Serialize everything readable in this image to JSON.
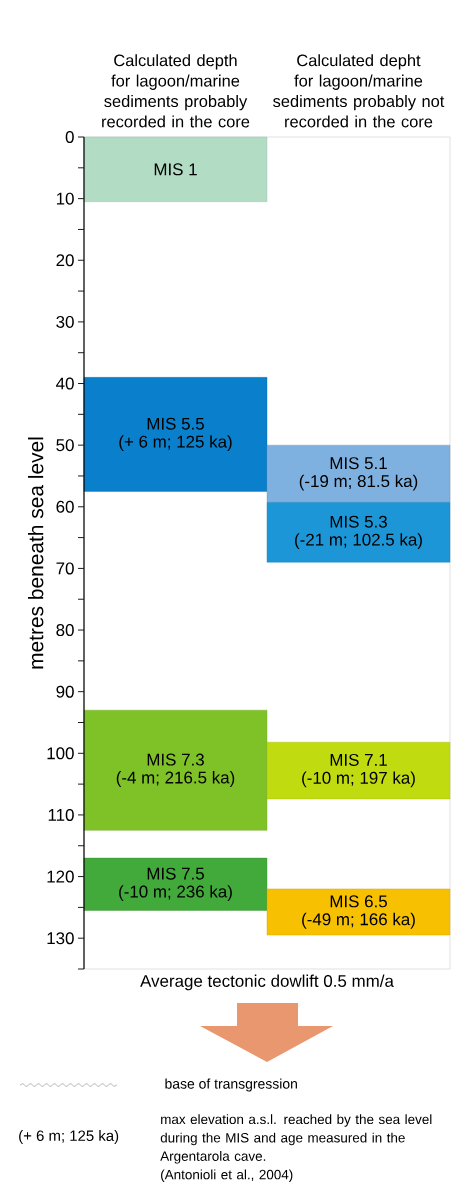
{
  "chart_data": {
    "type": "bar",
    "categories": [
      "Calculated depth for lagoon/marine sediments probably recorded in the core",
      "Calculated depht for lagoon/marine sediments probably not recorded in the core"
    ],
    "series": [
      {
        "name": "MIS 1",
        "color": "#b3dcc4",
        "base": [
          0,
          null
        ],
        "values": [
          10.5,
          null
        ]
      },
      {
        "name": "MIS 5.5",
        "color": "#0a7fcc",
        "base": [
          39,
          null
        ],
        "values": [
          18.5,
          null
        ],
        "value_labels": [
          "(+ 6 m; 125 ka)",
          null
        ]
      },
      {
        "name": "MIS 7.3",
        "color": "#7fc228",
        "base": [
          93,
          null
        ],
        "values": [
          19.5,
          null
        ],
        "value_labels": [
          "(-4 m; 216.5 ka)",
          null
        ]
      },
      {
        "name": "MIS 7.5",
        "color": "#42aa3a",
        "base": [
          117,
          null
        ],
        "values": [
          8.5,
          null
        ],
        "value_labels": [
          "(-10 m; 236 ka)",
          null
        ]
      },
      {
        "name": "MIS 5.1",
        "color": "#7eb0e0",
        "base": [
          null,
          50
        ],
        "values": [
          null,
          9.3
        ],
        "value_labels": [
          null,
          "(-19 m; 81.5 ka)"
        ]
      },
      {
        "name": "MIS 5.3",
        "color": "#1c96d6",
        "base": [
          null,
          59.3
        ],
        "values": [
          null,
          9.7
        ],
        "value_labels": [
          null,
          "(-21 m; 102.5 ka)"
        ]
      },
      {
        "name": "MIS 7.1",
        "color": "#c0dc10",
        "base": [
          null,
          98.2
        ],
        "values": [
          null,
          9.2
        ],
        "value_labels": [
          null,
          "(-10 m; 197 ka)"
        ]
      },
      {
        "name": "MIS 6.5",
        "color": "#f7c000",
        "base": [
          null,
          122
        ],
        "values": [
          null,
          7.5
        ],
        "value_labels": [
          null,
          "(-49 m; 166 ka)"
        ]
      }
    ],
    "ylabel": "metres beneath sea level",
    "xlabel": "Average tectonic dowlift 0.5 mm/a",
    "ylim": [
      135,
      0
    ],
    "yticks": [
      0,
      {
        "value": 5,
        "label": null
      },
      10,
      {
        "value": 15,
        "label": null
      },
      20,
      {
        "value": 25,
        "label": null
      },
      30,
      {
        "value": 35,
        "label": null
      },
      40,
      {
        "value": 45,
        "label": null
      },
      50,
      {
        "value": 55,
        "label": null
      },
      60,
      {
        "value": 65,
        "label": null
      },
      70,
      {
        "value": 75,
        "label": null
      },
      80,
      {
        "value": 85,
        "label": null
      },
      90,
      {
        "value": 95,
        "label": null
      },
      100,
      {
        "value": 105,
        "label": null
      },
      110,
      {
        "value": 115,
        "label": null
      },
      120,
      {
        "value": 125,
        "label": null
      },
      130,
      {
        "value": 135,
        "label": null
      }
    ],
    "annotations": [
      "base of transgression",
      "(+ 6 m; 125 ka)",
      "max elevation a.s.l. reached by the sea level during the MIS and age measured in the Argentarola cave.",
      "(Antonioli et al., 2004)"
    ]
  }
}
